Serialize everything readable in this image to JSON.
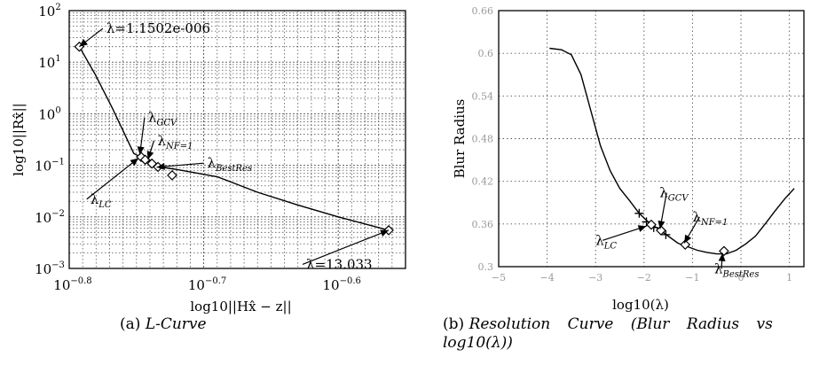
{
  "chart_data": [
    {
      "id": "a",
      "type": "line",
      "title": "",
      "xlabel": "log10||Hx̂ − z||",
      "ylabel": "log10||Rx̂||",
      "xscale": "linear (log10 values)",
      "yscale": "log",
      "xlim": [
        -0.8,
        -0.55
      ],
      "ylim": [
        0.001,
        100
      ],
      "x_ticks": [
        -0.8,
        -0.7,
        -0.6
      ],
      "x_tick_labels": [
        "10",
        "10",
        "10"
      ],
      "x_tick_exponents": [
        "−0.8",
        "−0.7",
        "−0.6"
      ],
      "y_ticks": [
        0.001,
        0.01,
        0.1,
        1,
        10,
        100
      ],
      "y_tick_labels": [
        "10",
        "10",
        "10",
        "10",
        "10",
        "10"
      ],
      "y_tick_exponents": [
        "−3",
        "−2",
        "−1",
        "0",
        "1",
        "2"
      ],
      "grid": true,
      "series": [
        {
          "x": [
            -0.7925,
            -0.781,
            -0.768,
            -0.752,
            -0.748,
            -0.746,
            -0.743,
            -0.742,
            -0.739,
            -0.736,
            -0.73,
            -0.72,
            -0.69,
            -0.66,
            -0.63,
            -0.6,
            -0.5625
          ],
          "y": [
            20,
            6,
            1.3,
            0.17,
            0.15,
            0.145,
            0.14,
            0.128,
            0.115,
            0.098,
            0.091,
            0.083,
            0.06,
            0.03,
            0.017,
            0.01,
            0.0055
          ]
        }
      ],
      "markers": [
        {
          "symbol": "diamond",
          "x": -0.7925,
          "y": 20
        },
        {
          "symbol": "diamond",
          "x": -0.7465,
          "y": 0.145
        },
        {
          "symbol": "diamond",
          "x": -0.7435,
          "y": 0.128
        },
        {
          "symbol": "diamond",
          "x": -0.7385,
          "y": 0.108
        },
        {
          "symbol": "diamond",
          "x": -0.734,
          "y": 0.093
        },
        {
          "symbol": "diamond",
          "x": -0.7235,
          "y": 0.064
        },
        {
          "symbol": "diamond",
          "x": -0.5625,
          "y": 0.0055
        }
      ],
      "annotations": [
        {
          "main": "λ=1.1502e-006",
          "sub": "",
          "tx": -0.775,
          "ty": 45,
          "ax": -0.7925,
          "ay": 20,
          "anchor": "start"
        },
        {
          "main": "λ",
          "sub": "GCV",
          "tx": -0.744,
          "ty": 0.85,
          "ax": -0.7475,
          "ay": 0.16,
          "anchor": "start"
        },
        {
          "main": "λ",
          "sub": "NF=1",
          "tx": -0.737,
          "ty": 0.3,
          "ax": -0.7415,
          "ay": 0.13,
          "anchor": "start"
        },
        {
          "main": "λ",
          "sub": "BestRes",
          "tx": -0.7,
          "ty": 0.11,
          "ax": -0.735,
          "ay": 0.092,
          "anchor": "start"
        },
        {
          "main": "λ",
          "sub": "LC",
          "tx": -0.787,
          "ty": 0.022,
          "ax": -0.7485,
          "ay": 0.138,
          "anchor": "start"
        },
        {
          "main": "λ=13.033",
          "sub": "",
          "tx": -0.6265,
          "ty": 0.0012,
          "ax": -0.5625,
          "ay": 0.0055,
          "anchor": "start"
        }
      ]
    },
    {
      "id": "b",
      "type": "line",
      "title": "",
      "xlabel": "log10(λ)",
      "ylabel": "Blur Radius",
      "xlim": [
        -5,
        1.3
      ],
      "ylim": [
        0.3,
        0.66
      ],
      "x_ticks": [
        -5,
        -4,
        -3,
        -2,
        -1,
        0,
        1
      ],
      "x_tick_labels": [
        "−5",
        "−4",
        "−3",
        "−2",
        "−1",
        "0",
        "1"
      ],
      "y_ticks": [
        0.3,
        0.36,
        0.42,
        0.48,
        0.54,
        0.6,
        0.66
      ],
      "y_tick_labels": [
        "0.3",
        "0.36",
        "0.42",
        "0.48",
        "0.54",
        "0.6",
        "0.66"
      ],
      "grid": true,
      "series": [
        {
          "x": [
            -3.95,
            -3.7,
            -3.5,
            -3.3,
            -3.1,
            -2.9,
            -2.7,
            -2.5,
            -2.3,
            -2.1,
            -1.9,
            -1.7,
            -1.5,
            -1.3,
            -1.1,
            -0.9,
            -0.7,
            -0.5,
            -0.3,
            -0.1,
            0.1,
            0.3,
            0.5,
            0.7,
            0.9,
            1.1
          ],
          "y": [
            0.607,
            0.605,
            0.598,
            0.57,
            0.52,
            0.47,
            0.435,
            0.41,
            0.393,
            0.375,
            0.362,
            0.353,
            0.343,
            0.333,
            0.328,
            0.323,
            0.32,
            0.318,
            0.318,
            0.323,
            0.332,
            0.343,
            0.36,
            0.378,
            0.395,
            0.41
          ]
        }
      ],
      "markers": [
        {
          "symbol": "plus",
          "x": -2.1,
          "y": 0.375
        },
        {
          "symbol": "plus",
          "x": -1.95,
          "y": 0.363
        },
        {
          "symbol": "plus",
          "x": -1.8,
          "y": 0.355
        },
        {
          "symbol": "plus",
          "x": -1.55,
          "y": 0.345
        },
        {
          "symbol": "diamond",
          "x": -1.85,
          "y": 0.359
        },
        {
          "symbol": "diamond",
          "x": -1.65,
          "y": 0.351
        },
        {
          "symbol": "diamond",
          "x": -1.15,
          "y": 0.331
        },
        {
          "symbol": "diamond",
          "x": -0.35,
          "y": 0.322
        }
      ],
      "annotations": [
        {
          "main": "λ",
          "sub": "GCV",
          "tx": -1.68,
          "ty": 0.404,
          "ax": -1.67,
          "ay": 0.353,
          "anchor": "start"
        },
        {
          "main": "λ",
          "sub": "NF=1",
          "tx": -1.0,
          "ty": 0.37,
          "ax": -1.17,
          "ay": 0.333,
          "anchor": "start"
        },
        {
          "main": "λ",
          "sub": "LC",
          "tx": -3.0,
          "ty": 0.337,
          "ax": -1.95,
          "ay": 0.357,
          "anchor": "start"
        },
        {
          "main": "λ",
          "sub": "BestRes",
          "tx": -0.55,
          "ty": 0.297,
          "ax": -0.38,
          "ay": 0.319,
          "anchor": "start"
        }
      ]
    }
  ],
  "captions": {
    "a": {
      "label": "(a)",
      "text": "L-Curve"
    },
    "b": {
      "label": "(b)",
      "line1": "Resolution  Curve  (Blur  Radius  vs",
      "line2": "log10(λ))"
    }
  },
  "colors": {
    "ink": "#000000",
    "grid": "#555555",
    "faint_tick": "#9a9a9a"
  }
}
